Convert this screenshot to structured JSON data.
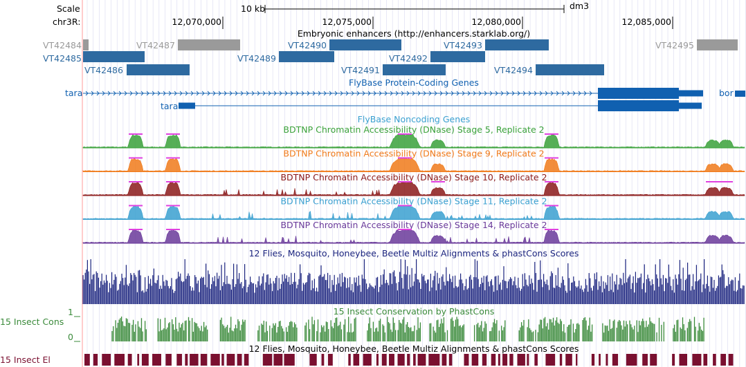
{
  "header": {
    "scale_label": "Scale",
    "scale_bar_label": "10 kb",
    "assembly": "dm3",
    "chrom_label": "chr3R:",
    "ticks": [
      "12,070,000",
      "12,075,000",
      "12,080,000",
      "12,085,000"
    ]
  },
  "enhancers": {
    "title": "Embryonic enhancers (http://enhancers.starklab.org/)",
    "items": [
      {
        "label": "VT42484",
        "shade": "gray"
      },
      {
        "label": "VT42485",
        "shade": "blue"
      },
      {
        "label": "VT42486",
        "shade": "blue"
      },
      {
        "label": "VT42487",
        "shade": "gray"
      },
      {
        "label": "VT42489",
        "shade": "blue"
      },
      {
        "label": "VT42490",
        "shade": "blue"
      },
      {
        "label": "VT42491",
        "shade": "blue"
      },
      {
        "label": "VT42492",
        "shade": "blue"
      },
      {
        "label": "VT42493",
        "shade": "blue"
      },
      {
        "label": "VT42494",
        "shade": "blue"
      },
      {
        "label": "VT42495",
        "shade": "gray"
      }
    ]
  },
  "genes": {
    "title": "FlyBase Protein-Coding Genes",
    "names": [
      "tara",
      "tara",
      "bor"
    ]
  },
  "noncoding": {
    "title": "FlyBase Noncoding Genes"
  },
  "dnase": [
    {
      "title": "BDTNP Chromatin Accessibility (DNase) Stage 5, Replicate 2",
      "color": "#3aa13a"
    },
    {
      "title": "BDTNP Chromatin Accessibility (DNase) Stage 9, Replicate 2",
      "color": "#f07a1a"
    },
    {
      "title": "BDTNP Chromatin Accessibility (DNase) Stage 10, Replicate 2",
      "color": "#8b1a1a"
    },
    {
      "title": "BDTNP Chromatin Accessibility (DNase) Stage 11, Replicate 2",
      "color": "#3aa0d0"
    },
    {
      "title": "BDTNP Chromatin Accessibility (DNase) Stage 14, Replicate 2",
      "color": "#6a3a9a"
    }
  ],
  "multiz": {
    "title": "12 Flies, Mosquito, Honeybee, Beetle Multiz Alignments & phastCons Scores"
  },
  "cons": {
    "title": "15 Insect Conservation by PhastCons",
    "side_label": "15 Insect Cons",
    "ymax": "1",
    "ymin": "0"
  },
  "elements": {
    "title": "12 Flies, Mosquito, Honeybee, Beetle Multiz Alignments & phastCons Scores",
    "side_label": "15 Insect El"
  },
  "colors": {
    "enhancer_blue": "#2e6aa0",
    "enhancer_gray": "#9a9a9a",
    "gene_blue": "#1060b0",
    "conservation_navy": "#1a237e",
    "conservation_green": "#3a8a3a",
    "elements_maroon": "#7a1030",
    "peak_magenta": "#e040e0"
  }
}
